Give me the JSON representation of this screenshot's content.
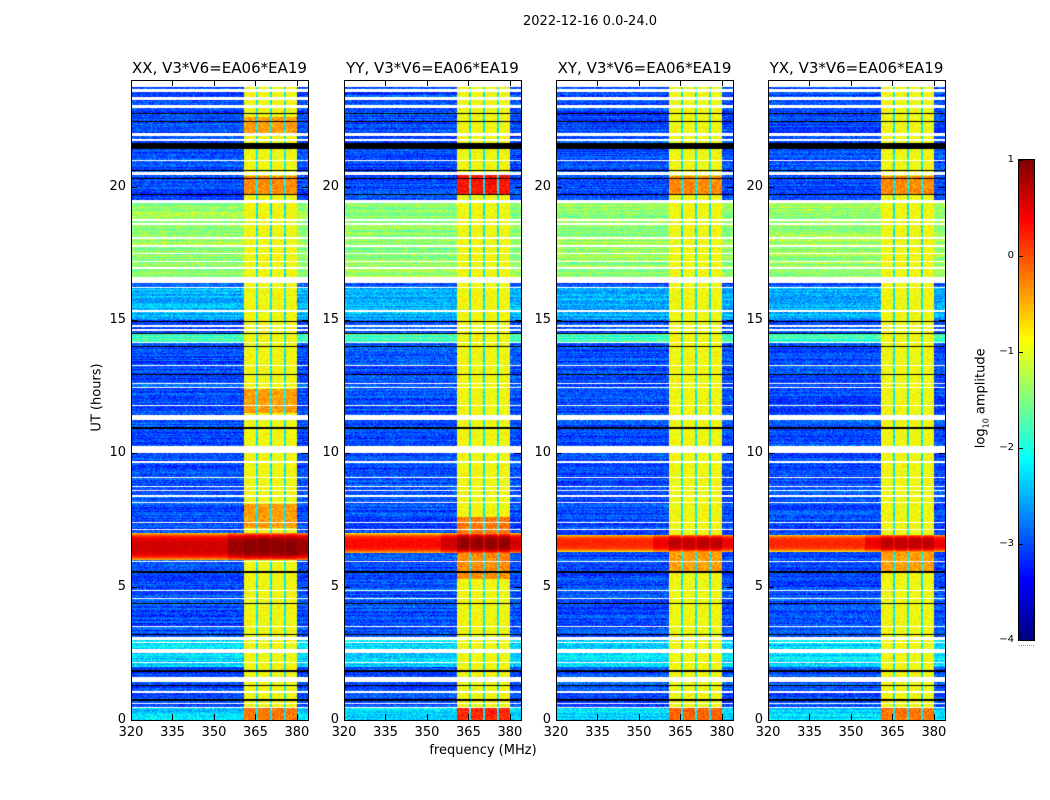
{
  "suptitle": "2022-12-16 0.0-24.0",
  "chart_data": {
    "type": "heatmap",
    "xlabel": "frequency (MHz)",
    "ylabel": "UT (hours)",
    "xlim": [
      320,
      384
    ],
    "ylim": [
      0,
      24
    ],
    "xticks": [
      "320",
      "335",
      "350",
      "365",
      "380"
    ],
    "yticks": [
      "0",
      "5",
      "10",
      "15",
      "20"
    ],
    "colormap": "jet",
    "colorbar": {
      "label_main": "log",
      "label_sub": "10",
      "label_rest": " amplitude",
      "range": [
        -4,
        1
      ],
      "ticks": [
        "1",
        "0",
        "−1",
        "−2",
        "−3",
        "−4"
      ]
    },
    "background_level": -3.0,
    "time_segments": [
      {
        "from": 16.55,
        "to": 19.4,
        "level": -1.4
      },
      {
        "from": 14.15,
        "to": 14.5,
        "level": -1.8
      },
      {
        "from": 15.0,
        "to": 16.2,
        "level": -2.5
      },
      {
        "from": 2.0,
        "to": 3.0,
        "level": -2.3
      },
      {
        "from": 0.0,
        "to": 0.45,
        "level": -2.3
      }
    ],
    "rfi_subbands_mhz": [
      [
        361,
        365.3
      ],
      [
        366,
        370.3
      ],
      [
        371,
        375.3
      ],
      [
        376,
        380
      ]
    ],
    "rfi_level": -0.9,
    "flagged_hours": [
      [
        23.75,
        24
      ],
      [
        23.55,
        23.68
      ],
      [
        23.25,
        23.35
      ],
      [
        22.95,
        23.05
      ],
      [
        21.9,
        22.0
      ],
      [
        21.7,
        21.8
      ],
      [
        20.95,
        21.0
      ],
      [
        20.45,
        20.55
      ],
      [
        19.4,
        19.5
      ],
      [
        18.72,
        18.78
      ],
      [
        18.57,
        18.63
      ],
      [
        18.04,
        18.1
      ],
      [
        17.74,
        17.8
      ],
      [
        17.47,
        17.53
      ],
      [
        17.17,
        17.23
      ],
      [
        16.92,
        16.98
      ],
      [
        16.4,
        16.6
      ],
      [
        16.2,
        16.25
      ],
      [
        15.3,
        15.36
      ],
      [
        14.6,
        14.65
      ],
      [
        14.75,
        14.8
      ],
      [
        14.12,
        14.17
      ],
      [
        13.28,
        13.33
      ],
      [
        12.45,
        12.5
      ],
      [
        12.6,
        12.65
      ],
      [
        11.78,
        11.83
      ],
      [
        11.25,
        11.45
      ],
      [
        10.0,
        10.27
      ],
      [
        9.65,
        9.7
      ],
      [
        9.06,
        9.11
      ],
      [
        8.72,
        8.77
      ],
      [
        8.58,
        8.62
      ],
      [
        8.38,
        8.42
      ],
      [
        8.12,
        8.16
      ],
      [
        7.38,
        7.42
      ],
      [
        7.14,
        7.18
      ],
      [
        5.91,
        5.95
      ],
      [
        4.85,
        4.89
      ],
      [
        4.52,
        4.56
      ],
      [
        3.48,
        3.52
      ],
      [
        3.0,
        3.1
      ],
      [
        2.9,
        2.94
      ],
      [
        2.5,
        2.66
      ],
      [
        2.15,
        2.19
      ],
      [
        1.42,
        1.6
      ],
      [
        1.03,
        1.07
      ],
      [
        0.61,
        0.65
      ],
      [
        0.46,
        0.5
      ]
    ],
    "zero_hours": [
      [
        22.73,
        22.78
      ],
      [
        22.43,
        22.47
      ],
      [
        21.4,
        21.65
      ],
      [
        21.1,
        21.13
      ],
      [
        21.17,
        21.2
      ],
      [
        20.58,
        20.62
      ],
      [
        20.28,
        20.32
      ],
      [
        19.68,
        19.72
      ],
      [
        14.92,
        14.95
      ],
      [
        14.48,
        14.51
      ],
      [
        13.98,
        14.01
      ],
      [
        12.95,
        12.99
      ],
      [
        10.93,
        10.97
      ],
      [
        5.53,
        5.57
      ],
      [
        4.36,
        4.4
      ],
      [
        3.2,
        3.24
      ],
      [
        1.8,
        1.88
      ],
      [
        1.28,
        1.31
      ],
      [
        0.7,
        0.8
      ]
    ],
    "panels": [
      {
        "title": "XX, V3*V6=EA06*EA19",
        "burst": {
          "from": 6.0,
          "to": 7.0,
          "level": 0.6,
          "rfi_level": 0.95
        },
        "rfi_enhanced": [
          [
            21.9,
            22.6,
            -0.4
          ],
          [
            19.7,
            20.4,
            -0.3
          ],
          [
            7.2,
            8.1,
            -0.4
          ],
          [
            11.5,
            12.4,
            -0.4
          ],
          [
            0,
            0.45,
            -0.2
          ]
        ]
      },
      {
        "title": "YY, V3*V6=EA06*EA19",
        "burst": {
          "from": 6.25,
          "to": 7.0,
          "level": 0.35,
          "rfi_level": 0.9
        },
        "rfi_enhanced": [
          [
            19.7,
            20.45,
            0.3
          ],
          [
            5.3,
            6.25,
            -0.3
          ],
          [
            7.0,
            7.6,
            -0.2
          ],
          [
            0,
            0.45,
            0.2
          ]
        ]
      },
      {
        "title": "XY, V3*V6=EA06*EA19",
        "burst": {
          "from": 6.3,
          "to": 6.95,
          "level": 0.2,
          "rfi_level": 0.7
        },
        "rfi_enhanced": [
          [
            19.7,
            20.4,
            -0.3
          ],
          [
            5.5,
            6.3,
            -0.4
          ],
          [
            0,
            0.45,
            -0.1
          ]
        ]
      },
      {
        "title": "YX, V3*V6=EA06*EA19",
        "burst": {
          "from": 6.3,
          "to": 6.95,
          "level": 0.2,
          "rfi_level": 0.7
        },
        "rfi_enhanced": [
          [
            19.7,
            20.4,
            -0.3
          ],
          [
            5.5,
            6.3,
            -0.4
          ],
          [
            0,
            0.45,
            -0.2
          ]
        ]
      }
    ]
  }
}
